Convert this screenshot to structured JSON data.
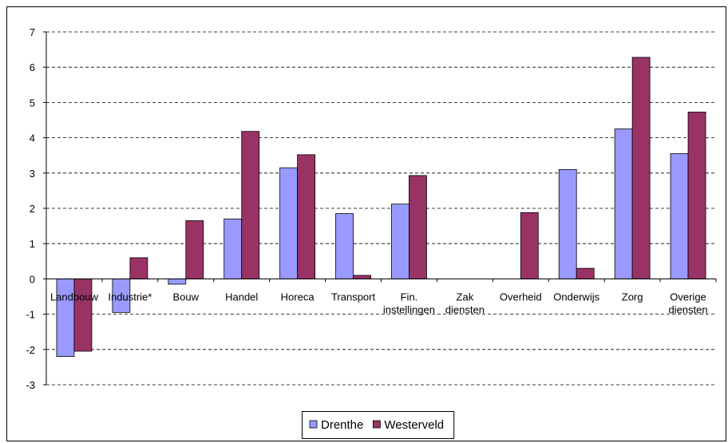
{
  "chart_data": {
    "type": "bar",
    "categories": [
      "Landbouw",
      "Industrie*",
      "Bouw",
      "Handel",
      "Horeca",
      "Transport",
      "Fin. instellingen",
      "Zak diensten",
      "Overheid",
      "Onderwijs",
      "Zorg",
      "Overige diensten"
    ],
    "series": [
      {
        "name": "Drenthe",
        "color": "#9999ff",
        "values": [
          -2.2,
          -0.95,
          -0.15,
          1.7,
          3.15,
          1.85,
          2.12,
          null,
          null,
          3.1,
          4.25,
          3.55
        ]
      },
      {
        "name": "Westerveld",
        "color": "#993366",
        "values": [
          -2.05,
          0.6,
          1.65,
          4.18,
          3.52,
          0.1,
          2.93,
          null,
          1.88,
          0.3,
          6.28,
          4.73
        ]
      }
    ],
    "ylim": [
      -3,
      7
    ],
    "yticks": [
      -3,
      -2,
      -1,
      0,
      1,
      2,
      3,
      4,
      5,
      6,
      7
    ],
    "grid": true,
    "legend": "bottom"
  }
}
